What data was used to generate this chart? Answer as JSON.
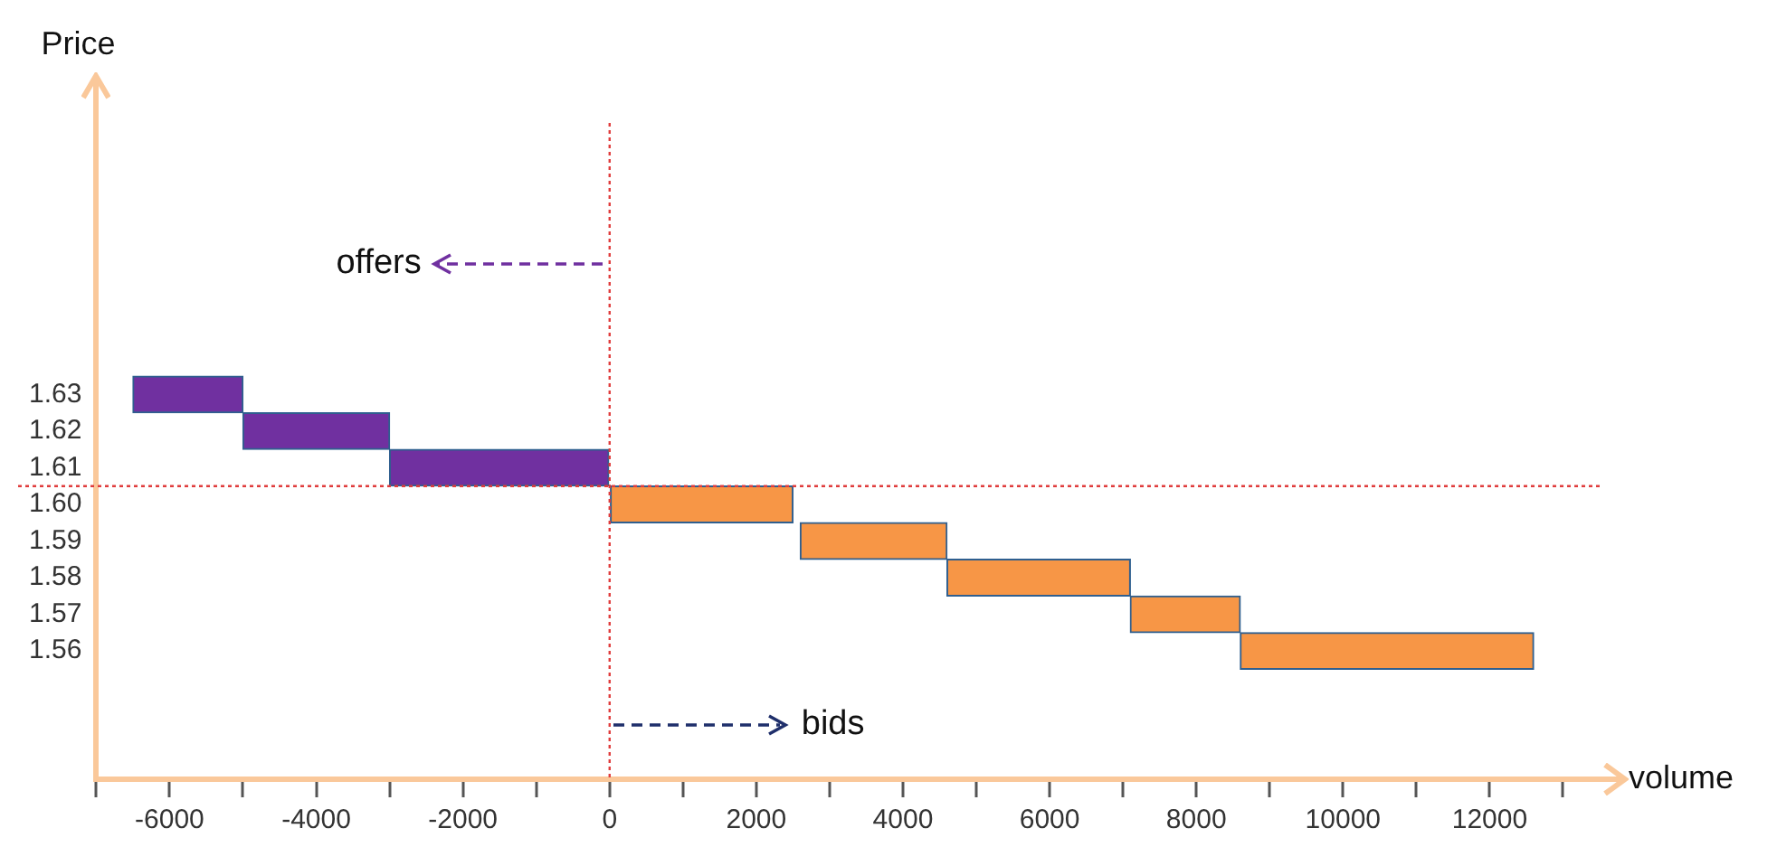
{
  "chart_data": {
    "type": "bar",
    "orientation": "horizontal",
    "xlabel": "volume",
    "ylabel": "Price",
    "series": [
      {
        "color": "#7030a0",
        "x": [
          1.63,
          1.62,
          1.61
        ],
        "base": [
          -6500,
          -5000,
          -3000
        ],
        "values": [
          1500,
          2000,
          3000
        ]
      },
      {
        "color": "#f79646",
        "x": [
          1.6,
          1.59,
          1.58,
          1.57,
          1.56
        ],
        "base": [
          0,
          2600,
          4600,
          7100,
          8600
        ],
        "values": [
          2500,
          2000,
          2500,
          1500,
          4000
        ]
      }
    ],
    "xlim": [
      -7000,
      13500
    ],
    "xticks": [
      {
        "value": -7000,
        "label": null
      },
      -6000,
      {
        "value": -5000,
        "label": null
      },
      -4000,
      {
        "value": -3000,
        "label": null
      },
      -2000,
      {
        "value": -1000,
        "label": null
      },
      0,
      {
        "value": 1000,
        "label": null
      },
      2000,
      {
        "value": 3000,
        "label": null
      },
      4000,
      {
        "value": 5000,
        "label": null
      },
      6000,
      {
        "value": 7000,
        "label": null
      },
      8000,
      {
        "value": 9000,
        "label": null
      },
      10000,
      {
        "value": 11000,
        "label": null
      },
      12000,
      {
        "value": 13000,
        "label": null
      }
    ],
    "ylim": [
      1.525,
      1.71
    ],
    "yticks": [
      1.56,
      1.57,
      1.58,
      1.59,
      {
        "value": 1.6,
        "label": "1.60"
      },
      1.61,
      1.62,
      1.63
    ],
    "ref_lines": [
      {
        "axis": "x",
        "value": 0,
        "color": "#e03c3c",
        "line_style": "dotted"
      },
      {
        "axis": "y",
        "value": 1.605,
        "color": "#e03c3c",
        "line_style": "dotted"
      }
    ],
    "annotations": [
      "offers",
      {
        "text": "bids",
        "x": 0,
        "y": 1.54
      }
    ],
    "grid": false,
    "legend": false
  }
}
